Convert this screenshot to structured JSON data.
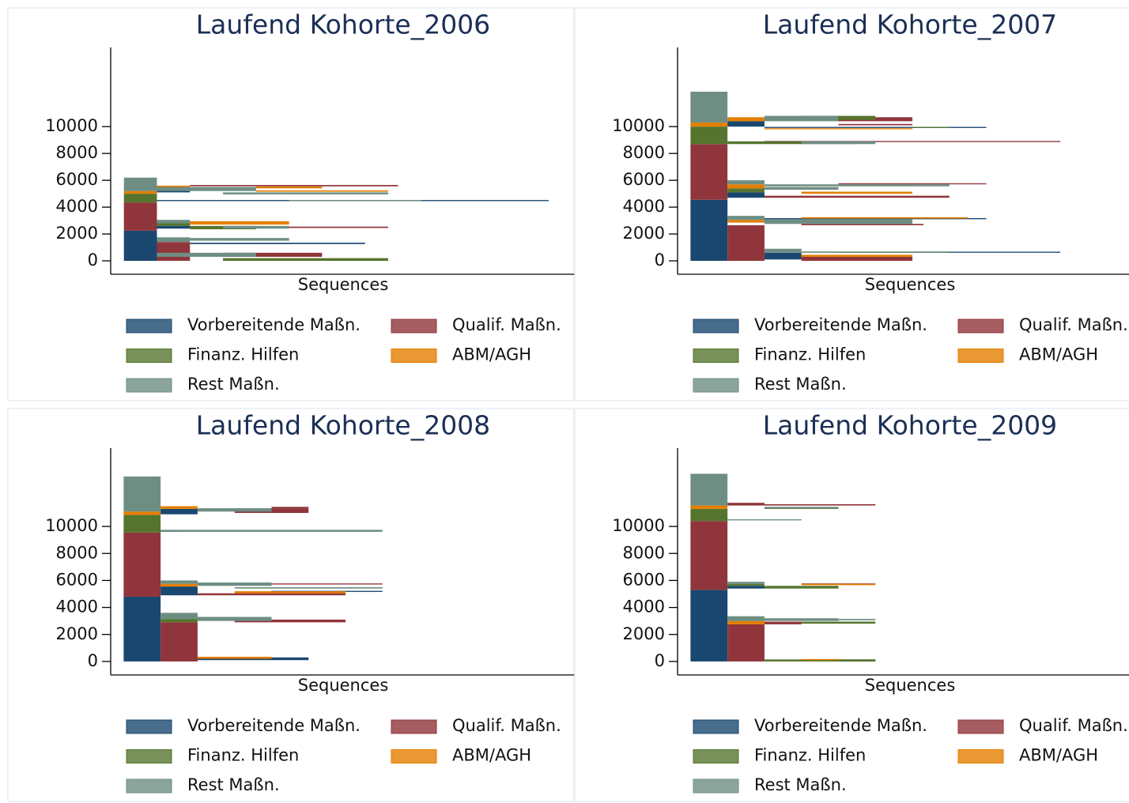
{
  "chart_data": [
    {
      "type": "sequence",
      "title": "Laufend Kohorte_2006",
      "xlabel": "Sequences",
      "xlim": [
        -0.4,
        13.65
      ],
      "ylim": [
        -1000,
        15900
      ],
      "yticks": [
        0,
        2000,
        4000,
        6000,
        8000,
        10000
      ],
      "series": [
        {
          "name": "Vorbereitende Maßn.",
          "color": "#1a476f",
          "values": [
            [
              0,
              1,
              0,
              2250
            ],
            [
              1,
              1,
              2400,
              200
            ],
            [
              1,
              1,
              5100,
              250
            ],
            [
              4,
              3,
              0,
              100
            ],
            [
              2,
              5.3,
              1250,
              100
            ],
            [
              1,
              11.86,
              4450,
              80
            ]
          ]
        },
        {
          "name": "Qualif. Maßn.",
          "color": "#90353b",
          "values": [
            [
              0,
              1,
              2250,
              2100
            ],
            [
              1,
              1,
              0,
              1400
            ],
            [
              1,
              1,
              5350,
              150
            ],
            [
              3,
              3,
              300,
              300
            ],
            [
              4,
              4,
              2450,
              100
            ],
            [
              2,
              6.3,
              5550,
              100
            ]
          ]
        },
        {
          "name": "Finanz. Hilfen",
          "color": "#55752f",
          "values": [
            [
              0,
              1,
              4350,
              650
            ],
            [
              3,
              5,
              0,
              200
            ],
            [
              3,
              2,
              1500,
              150
            ],
            [
              2,
              2,
              2350,
              250
            ],
            [
              1,
              1,
              2600,
              200
            ]
          ]
        },
        {
          "name": "ABM/AGH",
          "color": "#e37e00",
          "values": [
            [
              0,
              1,
              5000,
              200
            ],
            [
              1,
              1,
              5500,
              100
            ],
            [
              2,
              3,
              2700,
              250
            ],
            [
              4,
              2,
              5400,
              150
            ],
            [
              4,
              4,
              5150,
              100
            ]
          ]
        },
        {
          "name": "Rest Maßn.",
          "color": "#6e8e84",
          "values": [
            [
              0,
              1,
              5200,
              1000
            ],
            [
              1,
              1,
              1400,
              350
            ],
            [
              1,
              1,
              2800,
              250
            ],
            [
              1,
              3,
              300,
              300
            ],
            [
              2,
              3,
              1500,
              200
            ],
            [
              3,
              2,
              2400,
              200
            ],
            [
              1,
              3,
              5200,
              300
            ],
            [
              3,
              5,
              4950,
              150
            ],
            [
              5,
              4,
              4450,
              80
            ]
          ]
        }
      ]
    },
    {
      "type": "sequence",
      "title": "Laufend Kohorte_2007",
      "xlabel": "Sequences",
      "xlim": [
        -0.35,
        12.2
      ],
      "ylim": [
        -1000,
        15900
      ],
      "yticks": [
        0,
        2000,
        4000,
        6000,
        8000,
        10000
      ],
      "series": [
        {
          "name": "Vorbereitende Maßn.",
          "color": "#1a476f",
          "values": [
            [
              0,
              1,
              0,
              4550
            ],
            [
              1,
              1,
              4700,
              400
            ],
            [
              1,
              1,
              10000,
              400
            ],
            [
              2,
              1,
              100,
              500
            ],
            [
              4,
              6,
              600,
              80
            ],
            [
              2,
              6,
              3100,
              80
            ],
            [
              2,
              6,
              9900,
              80
            ]
          ]
        },
        {
          "name": "Qualif. Maßn.",
          "color": "#90353b",
          "values": [
            [
              0,
              1,
              4550,
              4150
            ],
            [
              1,
              1,
              0,
              2650
            ],
            [
              3,
              3,
              0,
              300
            ],
            [
              3,
              3.3,
              2650,
              100
            ],
            [
              2,
              5,
              4700,
              150
            ],
            [
              4,
              4,
              5700,
              80
            ],
            [
              2,
              8,
              8850,
              80
            ],
            [
              4,
              2,
              10100,
              100
            ],
            [
              4,
              2,
              10400,
              300
            ]
          ]
        },
        {
          "name": "Finanz. Hilfen",
          "color": "#55752f",
          "values": [
            [
              0,
              1,
              8700,
              1300
            ],
            [
              1,
              1,
              5100,
              300
            ],
            [
              1,
              3.5,
              8700,
              200
            ],
            [
              3,
              2,
              10500,
              300
            ],
            [
              6,
              1,
              9900,
              80
            ]
          ]
        },
        {
          "name": "ABM/AGH",
          "color": "#e37e00",
          "values": [
            [
              0,
              1,
              10000,
              300
            ],
            [
              1,
              1,
              2850,
              200
            ],
            [
              1,
              1,
              5400,
              300
            ],
            [
              1,
              1,
              10400,
              300
            ],
            [
              3,
              3,
              300,
              150
            ],
            [
              3,
              4.5,
              3150,
              100
            ],
            [
              3,
              3,
              5000,
              150
            ],
            [
              2,
              4,
              9800,
              80
            ]
          ]
        },
        {
          "name": "Rest Maßn.",
          "color": "#6e8e84",
          "values": [
            [
              0,
              1,
              10300,
              2300
            ],
            [
              1,
              1,
              3050,
              300
            ],
            [
              1,
              1,
              5700,
              300
            ],
            [
              2,
              1,
              600,
              300
            ],
            [
              3,
              4,
              600,
              100
            ],
            [
              2,
              4,
              2750,
              350
            ],
            [
              2,
              5,
              5550,
              150
            ],
            [
              2,
              2,
              5300,
              200
            ],
            [
              3,
              2,
              8700,
              200
            ],
            [
              2,
              2,
              10400,
              400
            ]
          ]
        }
      ]
    },
    {
      "type": "sequence",
      "title": "Laufend Kohorte_2008",
      "xlabel": "Sequences",
      "xlim": [
        -0.35,
        12.2
      ],
      "ylim": [
        -1000,
        15800
      ],
      "yticks": [
        0,
        2000,
        4000,
        6000,
        8000,
        10000
      ],
      "series": [
        {
          "name": "Vorbereitende Maßn.",
          "color": "#1a476f",
          "values": [
            [
              0,
              1,
              0,
              4800
            ],
            [
              1,
              1,
              4900,
              650
            ],
            [
              1,
              1,
              10900,
              400
            ],
            [
              1,
              4,
              100,
              200
            ],
            [
              4,
              3,
              5150,
              80
            ]
          ]
        },
        {
          "name": "Qualif. Maßn.",
          "color": "#90353b",
          "values": [
            [
              0,
              1,
              4800,
              4750
            ],
            [
              1,
              1,
              0,
              2900
            ],
            [
              1,
              0.5,
              9600,
              100
            ],
            [
              3,
              3,
              2900,
              200
            ],
            [
              2,
              5,
              5700,
              80
            ],
            [
              2,
              4,
              4900,
              150
            ],
            [
              3,
              2,
              11000,
              300
            ],
            [
              4,
              1,
              11300,
              150
            ]
          ]
        },
        {
          "name": "Finanz. Hilfen",
          "color": "#55752f",
          "values": [
            [
              0,
              1,
              9550,
              1300
            ],
            [
              1,
              1,
              2900,
              250
            ]
          ]
        },
        {
          "name": "ABM/AGH",
          "color": "#e37e00",
          "values": [
            [
              0,
              1,
              10850,
              250
            ],
            [
              1,
              1,
              5550,
              200
            ],
            [
              1,
              1,
              11300,
              200
            ],
            [
              2,
              2,
              200,
              150
            ],
            [
              2,
              1,
              3200,
              100
            ],
            [
              3,
              3,
              5050,
              150
            ]
          ]
        },
        {
          "name": "Rest Maßn.",
          "color": "#6e8e84",
          "values": [
            [
              0,
              1,
              11100,
              2600
            ],
            [
              1,
              1,
              3150,
              450
            ],
            [
              1,
              1,
              5750,
              250
            ],
            [
              2,
              2,
              3000,
              300
            ],
            [
              1,
              6,
              9600,
              150
            ],
            [
              2,
              2,
              5600,
              250
            ],
            [
              3,
              4,
              5400,
              100
            ],
            [
              2,
              2,
              11100,
              250
            ]
          ]
        }
      ]
    },
    {
      "type": "sequence",
      "title": "Laufend Kohorte_2009",
      "xlabel": "Sequences",
      "xlim": [
        -0.35,
        12.2
      ],
      "ylim": [
        -1000,
        15800
      ],
      "yticks": [
        0,
        2000,
        4000,
        6000,
        8000,
        10000
      ],
      "series": [
        {
          "name": "Vorbereitende Maßn.",
          "color": "#1a476f",
          "values": [
            [
              0,
              1,
              0,
              5300
            ],
            [
              1,
              1,
              5400,
              200
            ]
          ]
        },
        {
          "name": "Qualif. Maßn.",
          "color": "#90353b",
          "values": [
            [
              0,
              1,
              5300,
              5100
            ],
            [
              1,
              1,
              0,
              2750
            ],
            [
              1,
              1,
              11550,
              200
            ],
            [
              4,
              1,
              0,
              150
            ],
            [
              2,
              1,
              2750,
              200
            ],
            [
              3,
              2,
              5700,
              80
            ],
            [
              2,
              3,
              11550,
              100
            ]
          ]
        },
        {
          "name": "Finanz. Hilfen",
          "color": "#55752f",
          "values": [
            [
              0,
              1,
              10400,
              900
            ],
            [
              1,
              1,
              5600,
              150
            ],
            [
              2,
              3,
              0,
              150
            ],
            [
              3,
              2,
              2800,
              150
            ],
            [
              2,
              2,
              5400,
              200
            ],
            [
              2,
              2,
              11300,
              100
            ]
          ]
        },
        {
          "name": "ABM/AGH",
          "color": "#e37e00",
          "values": [
            [
              0,
              1,
              11300,
              250
            ],
            [
              1,
              1,
              2750,
              250
            ],
            [
              3,
              1,
              100,
              80
            ],
            [
              3,
              2,
              5650,
              100
            ]
          ]
        },
        {
          "name": "Rest Maßn.",
          "color": "#6e8e84",
          "values": [
            [
              0,
              1,
              11550,
              2350
            ],
            [
              1,
              1,
              3000,
              350
            ],
            [
              1,
              1,
              5750,
              150
            ],
            [
              1,
              3,
              3000,
              200
            ],
            [
              4,
              1,
              3050,
              100
            ],
            [
              1,
              2,
              10450,
              80
            ],
            [
              2,
              2,
              11350,
              100
            ]
          ]
        }
      ]
    }
  ]
}
